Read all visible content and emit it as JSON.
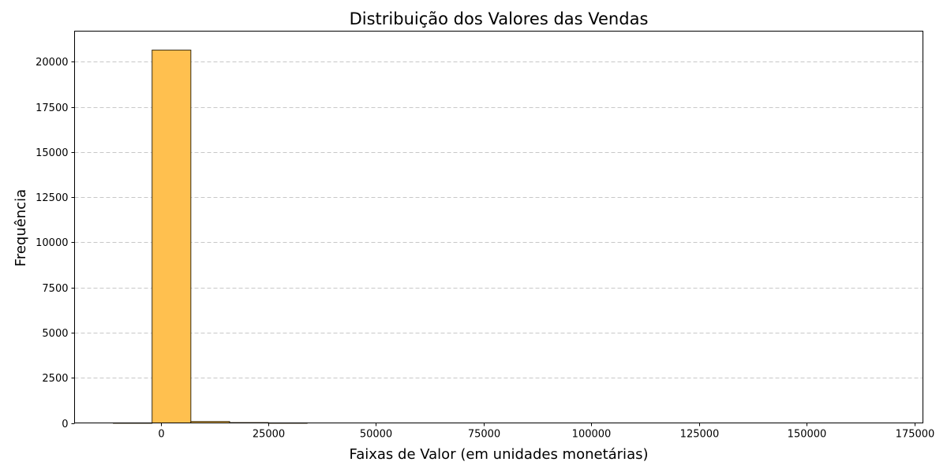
{
  "chart_data": {
    "type": "bar",
    "title": "Distribuição dos Valores das Vendas",
    "xlabel": "Faixas de Valor (em unidades monetárias)",
    "ylabel": "Frequência",
    "xlim": [
      -20000,
      177000
    ],
    "ylim": [
      0,
      21700
    ],
    "xticks": [
      0,
      25000,
      50000,
      75000,
      100000,
      125000,
      150000,
      175000
    ],
    "yticks": [
      0,
      2500,
      5000,
      7500,
      10000,
      12500,
      15000,
      17500,
      20000
    ],
    "grid": "y-dashed",
    "bar_color": "#ffc04f",
    "edge_color": "#3a2e12",
    "bins": [
      {
        "x0": -11000,
        "x1": -2000,
        "value": 2
      },
      {
        "x0": -2000,
        "x1": 7000,
        "value": 20650
      },
      {
        "x0": 7000,
        "x1": 16000,
        "value": 80
      },
      {
        "x0": 16000,
        "x1": 25000,
        "value": 20
      },
      {
        "x0": 25000,
        "x1": 34000,
        "value": 3
      }
    ]
  }
}
